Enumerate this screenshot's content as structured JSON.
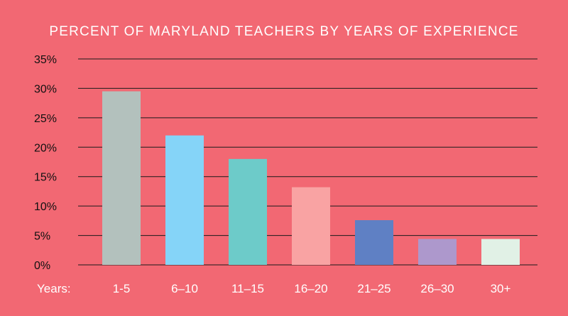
{
  "chart_data": {
    "type": "bar",
    "title": "PERCENT OF MARYLAND TEACHERS BY YEARS OF EXPERIENCE",
    "xlabel": "Years:",
    "ylabel": "",
    "categories": [
      "1-5",
      "6–10",
      "11–15",
      "16–20",
      "21–25",
      "26–30",
      "30+"
    ],
    "values": [
      29.5,
      22,
      18,
      13.2,
      7.6,
      4.4,
      4.4
    ],
    "bar_colors": [
      "#b3c1bd",
      "#85d4f8",
      "#6dcbc9",
      "#f9a3a3",
      "#5f80c4",
      "#ad98cc",
      "#e1f1e6"
    ],
    "y_ticks": [
      "0%",
      "5%",
      "10%",
      "15%",
      "20%",
      "25%",
      "30%",
      "35%"
    ],
    "ylim": [
      0,
      35
    ],
    "grid": true,
    "legend": "none",
    "background_color": "#f26873"
  }
}
